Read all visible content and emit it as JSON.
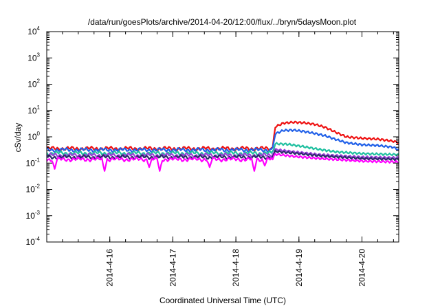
{
  "chart_data": {
    "type": "line",
    "title": "/data/run/goesPlots/archive/2014-04-20/12:00/flux/../bryn/5daysMoon.plot",
    "xlabel": "Coordinated Universal Time (UTC)",
    "ylabel": "cSv/day",
    "yscale": "log",
    "ylim": [
      0.0001,
      10000
    ],
    "y_ticks": [
      {
        "base": "10",
        "exp": "-4"
      },
      {
        "base": "10",
        "exp": "-3"
      },
      {
        "base": "10",
        "exp": "-2"
      },
      {
        "base": "10",
        "exp": "-1"
      },
      {
        "base": "10",
        "exp": "0"
      },
      {
        "base": "10",
        "exp": "1"
      },
      {
        "base": "10",
        "exp": "2"
      },
      {
        "base": "10",
        "exp": "3"
      },
      {
        "base": "10",
        "exp": "4"
      }
    ],
    "xlim": [
      "2014-04-15T00:00Z",
      "2014-04-20T14:00Z"
    ],
    "x_ticks": [
      "2014-4-16",
      "2014-4-17",
      "2014-4-18",
      "2014-4-19",
      "2014-4-20"
    ],
    "grid": false,
    "legend": "none",
    "event_start": "2014-04-18T14:00Z",
    "series": [
      {
        "color": "#ee1111",
        "baseline": 0.36,
        "event": [
          [
            "2014-04-18T14:00Z",
            0.4
          ],
          [
            "2014-04-18T15:00Z",
            2.4
          ],
          [
            "2014-04-18T18:00Z",
            3.3
          ],
          [
            "2014-04-18T22:00Z",
            3.6
          ],
          [
            "2014-04-19T02:00Z",
            3.4
          ],
          [
            "2014-04-19T06:00Z",
            3.0
          ],
          [
            "2014-04-19T10:00Z",
            2.3
          ],
          [
            "2014-04-19T14:00Z",
            1.5
          ],
          [
            "2014-04-19T18:00Z",
            1.0
          ],
          [
            "2014-04-20T00:00Z",
            0.88
          ],
          [
            "2014-04-20T06:00Z",
            0.82
          ],
          [
            "2014-04-20T12:00Z",
            0.68
          ],
          [
            "2014-04-20T14:00Z",
            0.6
          ]
        ]
      },
      {
        "color": "#1f5fe8",
        "baseline": 0.32,
        "event": [
          [
            "2014-04-18T14:00Z",
            0.36
          ],
          [
            "2014-04-18T15:00Z",
            1.3
          ],
          [
            "2014-04-18T18:00Z",
            1.75
          ],
          [
            "2014-04-18T22:00Z",
            1.8
          ],
          [
            "2014-04-19T02:00Z",
            1.6
          ],
          [
            "2014-04-19T06:00Z",
            1.35
          ],
          [
            "2014-04-19T10:00Z",
            1.1
          ],
          [
            "2014-04-19T14:00Z",
            0.8
          ],
          [
            "2014-04-19T18:00Z",
            0.6
          ],
          [
            "2014-04-20T00:00Z",
            0.5
          ],
          [
            "2014-04-20T06:00Z",
            0.47
          ],
          [
            "2014-04-20T12:00Z",
            0.4
          ],
          [
            "2014-04-20T14:00Z",
            0.32
          ]
        ]
      },
      {
        "color": "#20c0a0",
        "baseline": 0.24,
        "event": [
          [
            "2014-04-18T14:00Z",
            0.26
          ],
          [
            "2014-04-18T15:00Z",
            0.55
          ],
          [
            "2014-04-18T20:00Z",
            0.52
          ],
          [
            "2014-04-19T02:00Z",
            0.42
          ],
          [
            "2014-04-19T08:00Z",
            0.33
          ],
          [
            "2014-04-19T14:00Z",
            0.27
          ],
          [
            "2014-04-20T00:00Z",
            0.23
          ],
          [
            "2014-04-20T14:00Z",
            0.21
          ]
        ]
      },
      {
        "color": "#9a40d8",
        "baseline": 0.2,
        "event": [
          [
            "2014-04-18T14:00Z",
            0.22
          ],
          [
            "2014-04-18T15:00Z",
            0.33
          ],
          [
            "2014-04-18T22:00Z",
            0.27
          ],
          [
            "2014-04-19T08:00Z",
            0.21
          ],
          [
            "2014-04-20T00:00Z",
            0.17
          ],
          [
            "2014-04-20T14:00Z",
            0.16
          ]
        ]
      },
      {
        "color": "#2a2a6a",
        "baseline": 0.17,
        "event": [
          [
            "2014-04-18T14:00Z",
            0.19
          ],
          [
            "2014-04-18T15:00Z",
            0.28
          ],
          [
            "2014-04-18T22:00Z",
            0.24
          ],
          [
            "2014-04-19T08:00Z",
            0.19
          ],
          [
            "2014-04-20T00:00Z",
            0.15
          ],
          [
            "2014-04-20T14:00Z",
            0.14
          ]
        ]
      },
      {
        "color": "#ff00ff",
        "baseline": 0.14,
        "dips": [
          [
            "2014-04-15T03:00Z",
            0.06
          ],
          [
            "2014-04-15T22:00Z",
            0.05
          ],
          [
            "2014-04-16T15:00Z",
            0.07
          ],
          [
            "2014-04-16T19:00Z",
            0.05
          ],
          [
            "2014-04-17T14:00Z",
            0.07
          ],
          [
            "2014-04-18T07:00Z",
            0.05
          ],
          [
            "2014-04-18T11:00Z",
            0.08
          ]
        ],
        "event": [
          [
            "2014-04-18T14:00Z",
            0.15
          ],
          [
            "2014-04-18T15:00Z",
            0.22
          ],
          [
            "2014-04-18T22:00Z",
            0.18
          ],
          [
            "2014-04-19T08:00Z",
            0.15
          ],
          [
            "2014-04-20T00:00Z",
            0.12
          ],
          [
            "2014-04-20T14:00Z",
            0.11
          ]
        ]
      }
    ]
  }
}
